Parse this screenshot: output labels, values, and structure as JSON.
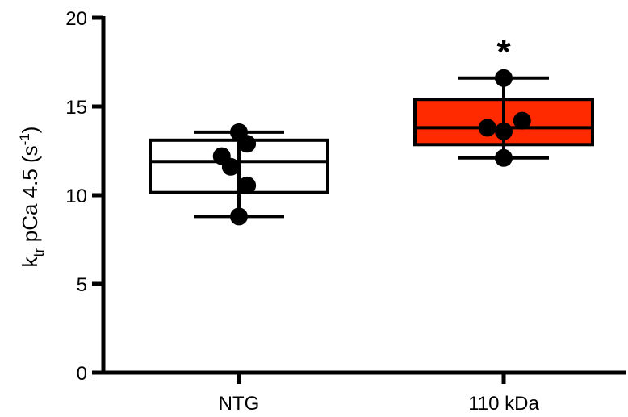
{
  "chart_data": {
    "type": "box",
    "title": "",
    "xlabel": "",
    "ylabel": {
      "parts": [
        "k",
        "tr",
        " pCa 4.5 (s",
        "-1",
        ")"
      ]
    },
    "ylim": [
      0,
      20
    ],
    "yticks": [
      0,
      5,
      10,
      15,
      20
    ],
    "categories": [
      "NTG",
      "110 kDa"
    ],
    "groups": [
      {
        "name": "NTG",
        "fill": "#ffffff",
        "whisker_min": 8.8,
        "q1": 10.15,
        "median": 11.9,
        "q3": 13.1,
        "whisker_max": 13.55,
        "points": [
          {
            "dx": 0.0,
            "y": 13.55
          },
          {
            "dx": 0.2,
            "y": 12.9
          },
          {
            "dx": -0.42,
            "y": 12.2
          },
          {
            "dx": -0.2,
            "y": 11.6
          },
          {
            "dx": 0.2,
            "y": 10.55
          },
          {
            "dx": 0.0,
            "y": 8.8
          }
        ],
        "annotation": ""
      },
      {
        "name": "110 kDa",
        "fill": "#ff2a00",
        "whisker_min": 12.1,
        "q1": 12.85,
        "median": 13.8,
        "q3": 15.4,
        "whisker_max": 16.6,
        "points": [
          {
            "dx": 0.0,
            "y": 16.6
          },
          {
            "dx": 0.45,
            "y": 14.2
          },
          {
            "dx": -0.4,
            "y": 13.8
          },
          {
            "dx": 0.0,
            "y": 13.6
          },
          {
            "dx": 0.0,
            "y": 12.1
          }
        ],
        "annotation": "*"
      }
    ],
    "grid": false,
    "legend": "none"
  }
}
